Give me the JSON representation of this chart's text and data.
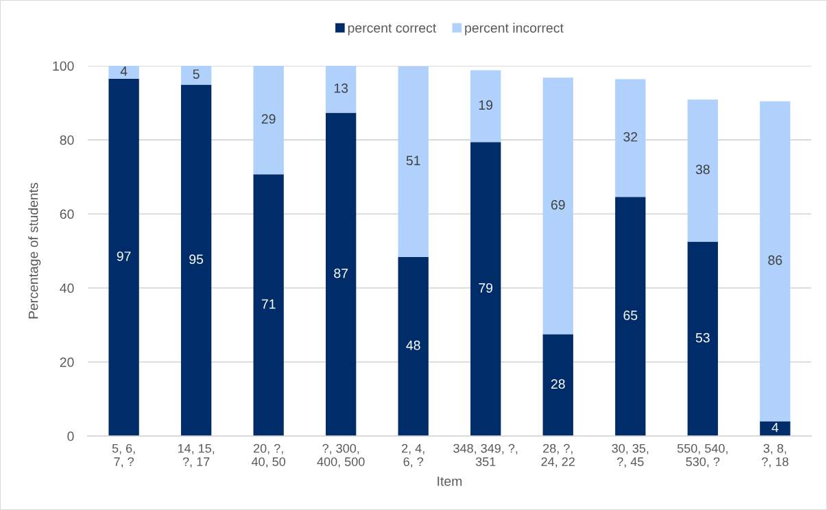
{
  "chart_data": {
    "type": "bar",
    "stacked": true,
    "xlabel": "Item",
    "ylabel": "Percentage of students",
    "categories": [
      "5, 6,\n7, ?",
      "14, 15,\n?, 17",
      "20, ?,\n40, 50",
      "?, 300,\n400, 500",
      "2, 4,\n6, ?",
      "348, 349, ?,\n351",
      "28, ?,\n24, 22",
      "30, 35,\n?, 45",
      "550, 540,\n530, ?",
      "3, 8,\n?, 18"
    ],
    "series": [
      {
        "name": "percent correct",
        "color": "#002d69",
        "values": [
          96.5,
          94.9,
          70.7,
          87.3,
          48.4,
          79.4,
          27.5,
          64.6,
          52.5,
          4.0
        ],
        "value_labels": [
          "97",
          "95",
          "71",
          "87",
          "48",
          "79",
          "28",
          "65",
          "53",
          "4"
        ]
      },
      {
        "name": "percent incorrect",
        "color": "#b0d1fc",
        "values": [
          3.5,
          5.1,
          29.3,
          12.7,
          51.4,
          19.4,
          69.3,
          31.8,
          38.4,
          86.4
        ],
        "value_labels": [
          "4",
          "5",
          "29",
          "13",
          "51",
          "19",
          "69",
          "32",
          "38",
          "86"
        ]
      }
    ],
    "ylim": [
      0,
      100
    ],
    "yticks": [
      0,
      20,
      40,
      60,
      80,
      100
    ],
    "grid": "y",
    "legend": "top"
  }
}
